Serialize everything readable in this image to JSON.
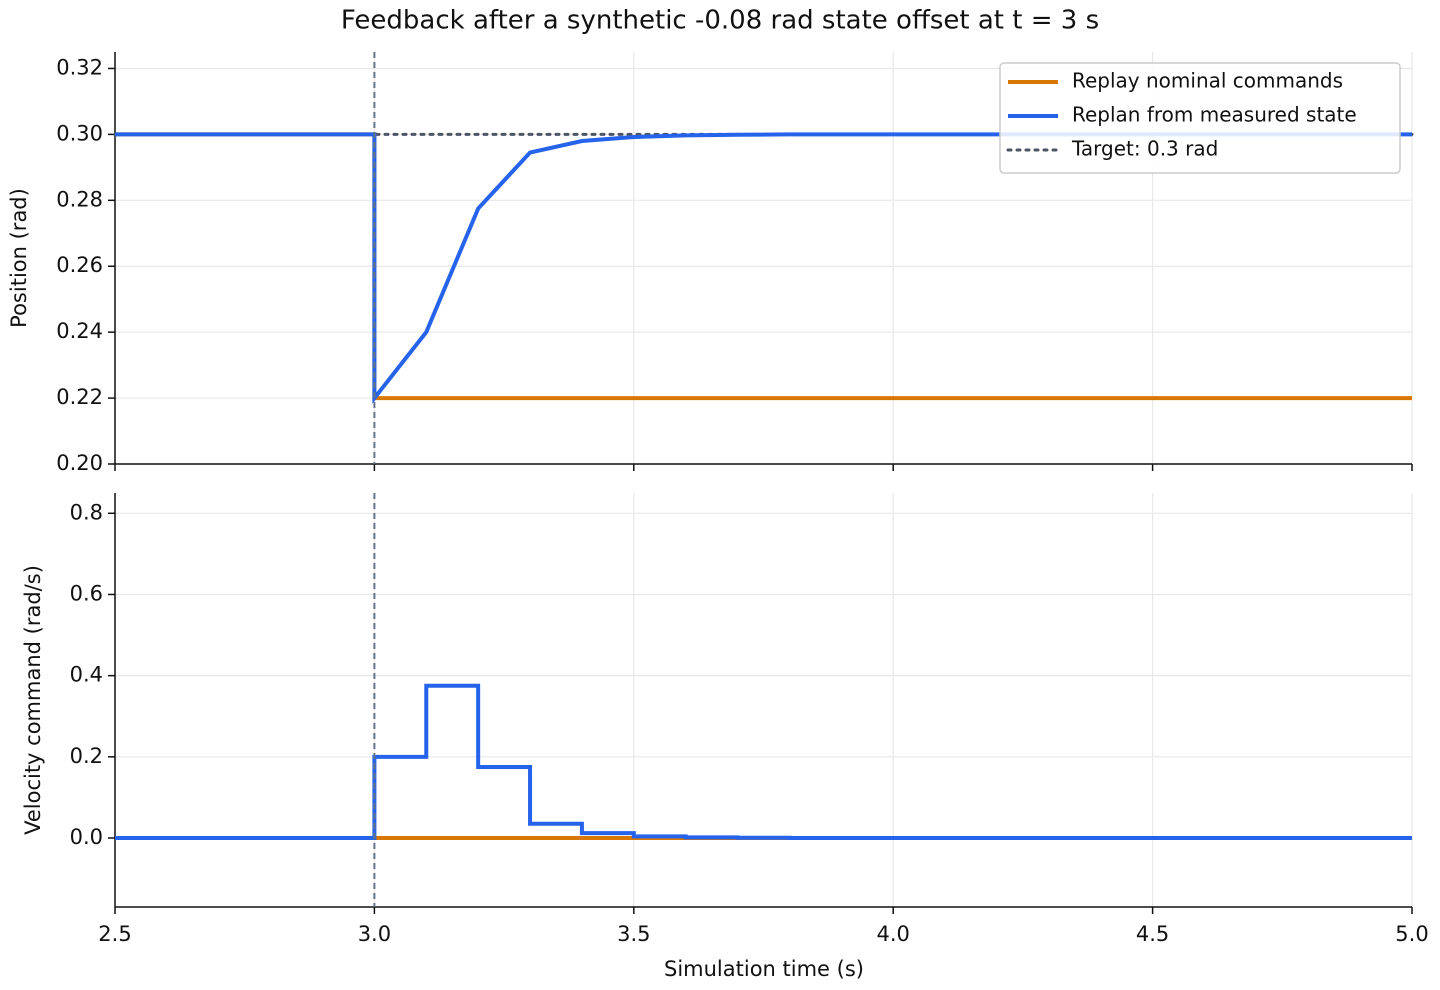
{
  "chart_data": [
    {
      "type": "line",
      "title": "Feedback after a synthetic -0.08 rad state offset at t = 3 s",
      "ylabel": "Position (rad)",
      "x": [
        2.5,
        3.0,
        3.0,
        3.1,
        3.2,
        3.3,
        3.4,
        3.5,
        3.6,
        3.7,
        3.8,
        5.0
      ],
      "series": [
        {
          "name": "Replay nominal commands",
          "color": "#d97706",
          "style": "solid",
          "values": [
            0.3,
            0.3,
            0.22,
            0.22,
            0.22,
            0.22,
            0.22,
            0.22,
            0.22,
            0.22,
            0.22,
            0.22
          ]
        },
        {
          "name": "Replan from measured state",
          "color": "#2563eb",
          "style": "solid",
          "values": [
            0.3,
            0.3,
            0.22,
            0.24,
            0.2775,
            0.2945,
            0.298,
            0.2992,
            0.2997,
            0.2999,
            0.3,
            0.3
          ]
        },
        {
          "name": "Target: 0.3 rad",
          "color": "#4b5563",
          "style": "dotted",
          "values": [
            0.3,
            0.3,
            0.3,
            0.3,
            0.3,
            0.3,
            0.3,
            0.3,
            0.3,
            0.3,
            0.3,
            0.3
          ]
        }
      ],
      "vline": 3.0,
      "vline_color": "#64748b",
      "xlim": [
        2.5,
        5.0
      ],
      "xticks": [
        2.5,
        3.0,
        3.5,
        4.0,
        4.5,
        5.0
      ],
      "ylim": [
        0.2,
        0.325
      ],
      "yticks": [
        {
          "value": 0.2,
          "label": "0.20"
        },
        0.22,
        0.24,
        0.26,
        0.28,
        {
          "value": 0.3,
          "label": "0.30"
        },
        0.32
      ],
      "grid": true,
      "legend": "upper right"
    },
    {
      "type": "step",
      "ylabel": "Velocity command (rad/s)",
      "xlabel": "Simulation time (s)",
      "x": [
        2.5,
        3.0,
        3.1,
        3.2,
        3.3,
        3.4,
        3.5,
        3.6,
        3.7,
        3.8,
        5.0
      ],
      "series": [
        {
          "name": "Replay nominal commands",
          "color": "#d97706",
          "values": [
            0,
            0,
            0,
            0,
            0,
            0,
            0,
            0,
            0,
            0,
            0
          ]
        },
        {
          "name": "Replan from measured state",
          "color": "#2563eb",
          "values": [
            0,
            0.2,
            0.375,
            0.175,
            0.035,
            0.012,
            0.004,
            0.0015,
            0.0005,
            0,
            0
          ]
        }
      ],
      "vline": 3.0,
      "vline_color": "#64748b",
      "xlim": [
        2.5,
        5.0
      ],
      "xticks": [
        2.5,
        {
          "value": 3.0,
          "label": "3.0"
        },
        3.5,
        {
          "value": 4.0,
          "label": "4.0"
        },
        4.5,
        {
          "value": 5.0,
          "label": "5.0"
        }
      ],
      "ylim": [
        -0.17,
        0.85
      ],
      "yticks": [
        {
          "value": 0,
          "label": "0.0"
        },
        0.2,
        0.4,
        0.6,
        0.8
      ],
      "grid": true
    }
  ]
}
